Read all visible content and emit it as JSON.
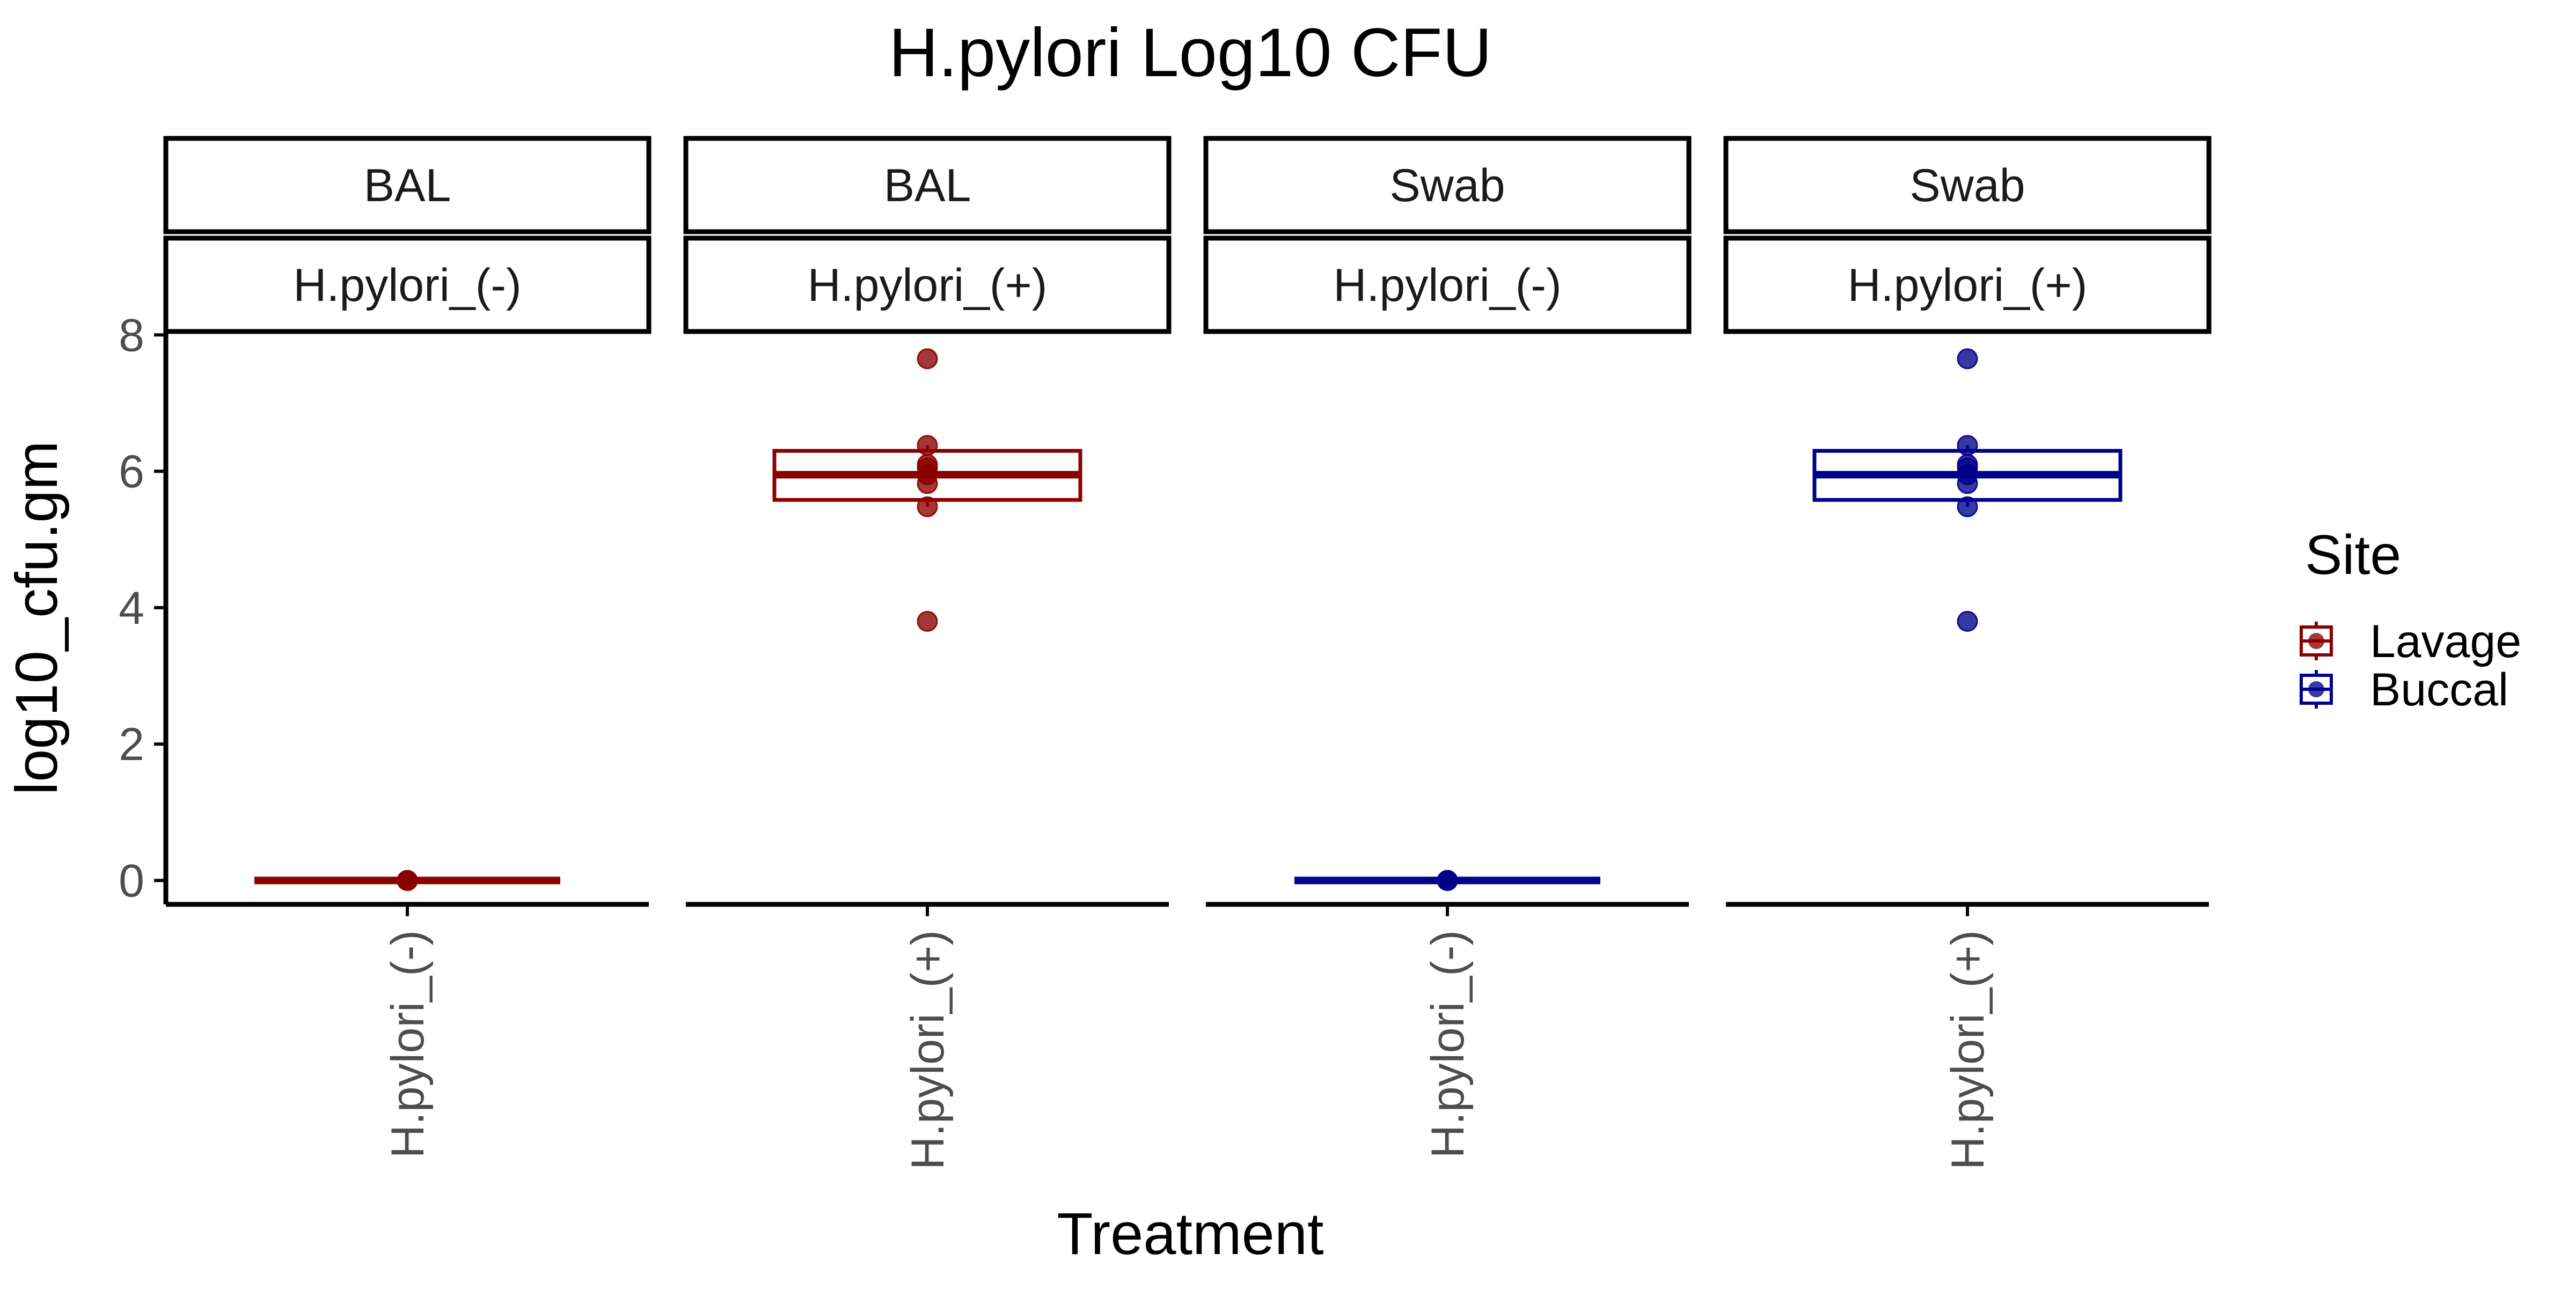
{
  "chart_data": {
    "type": "box",
    "title": "H.pylori Log10 CFU",
    "xlabel": "Treatment",
    "ylabel": "log10_cfu.gm",
    "ylim": [
      -0.35,
      8.05
    ],
    "yticks": [
      0,
      2,
      4,
      6,
      8
    ],
    "grid": false,
    "legend": {
      "title": "Site",
      "position": "right",
      "entries": [
        {
          "label": "Lavage",
          "color": "#8B0000"
        },
        {
          "label": "Buccal",
          "color": "#00008B"
        }
      ]
    },
    "panels": [
      {
        "strip_top": "BAL",
        "strip_bottom": "H.pylori_(-)",
        "category": "H.pylori_(-)",
        "site": "Lavage",
        "color": "#8B0000",
        "box": {
          "q1": 0,
          "median": 0,
          "q3": 0,
          "whisker_low": 0,
          "whisker_high": 0
        },
        "points": [
          0,
          0,
          0,
          0,
          0,
          0,
          0,
          0
        ]
      },
      {
        "strip_top": "BAL",
        "strip_bottom": "H.pylori_(+)",
        "category": "H.pylori_(+)",
        "site": "Lavage",
        "color": "#8B0000",
        "box": {
          "q1": 5.58,
          "median": 5.95,
          "q3": 6.3,
          "whisker_low": 5.48,
          "whisker_high": 6.38
        },
        "points": [
          7.65,
          6.38,
          6.1,
          6.05,
          5.95,
          5.82,
          5.48,
          3.8
        ]
      },
      {
        "strip_top": "Swab",
        "strip_bottom": "H.pylori_(-)",
        "category": "H.pylori_(-)",
        "site": "Buccal",
        "color": "#00008B",
        "box": {
          "q1": 0,
          "median": 0,
          "q3": 0,
          "whisker_low": 0,
          "whisker_high": 0
        },
        "points": [
          0,
          0,
          0,
          0,
          0,
          0,
          0,
          0
        ]
      },
      {
        "strip_top": "Swab",
        "strip_bottom": "H.pylori_(+)",
        "category": "H.pylori_(+)",
        "site": "Buccal",
        "color": "#00008B",
        "box": {
          "q1": 5.58,
          "median": 5.95,
          "q3": 6.3,
          "whisker_low": 5.48,
          "whisker_high": 6.38
        },
        "points": [
          7.65,
          6.38,
          6.1,
          6.05,
          5.95,
          5.82,
          5.48,
          3.8
        ]
      }
    ]
  }
}
